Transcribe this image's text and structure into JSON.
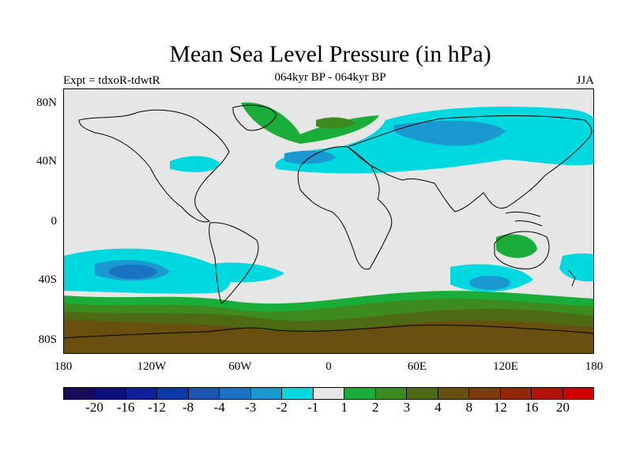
{
  "title": "Mean Sea Level Pressure (in hPa)",
  "subtitle": "064kyr BP - 064kyr BP",
  "experiment": "Expt = tdxoR-tdwtR",
  "season": "JJA",
  "lat_ticks": [
    "80N",
    "40N",
    "0",
    "40S",
    "80S"
  ],
  "lon_ticks": [
    "180",
    "120W",
    "60W",
    "0",
    "60E",
    "120E",
    "180"
  ],
  "colorbar": {
    "colors": [
      "#1a0a5a",
      "#0d0f7a",
      "#10209a",
      "#0c3aa8",
      "#1c55b0",
      "#1a72c2",
      "#1a99d0",
      "#00d8e0",
      "#e6e6e6",
      "#1aad3a",
      "#3d8a1e",
      "#4e6a14",
      "#6a5010",
      "#7e3a10",
      "#922808",
      "#b21208",
      "#d10000"
    ],
    "labels": [
      "-20",
      "-16",
      "-12",
      "-8",
      "-4",
      "-3",
      "-2",
      "-1",
      "1",
      "2",
      "3",
      "4",
      "8",
      "12",
      "16",
      "20"
    ]
  }
}
